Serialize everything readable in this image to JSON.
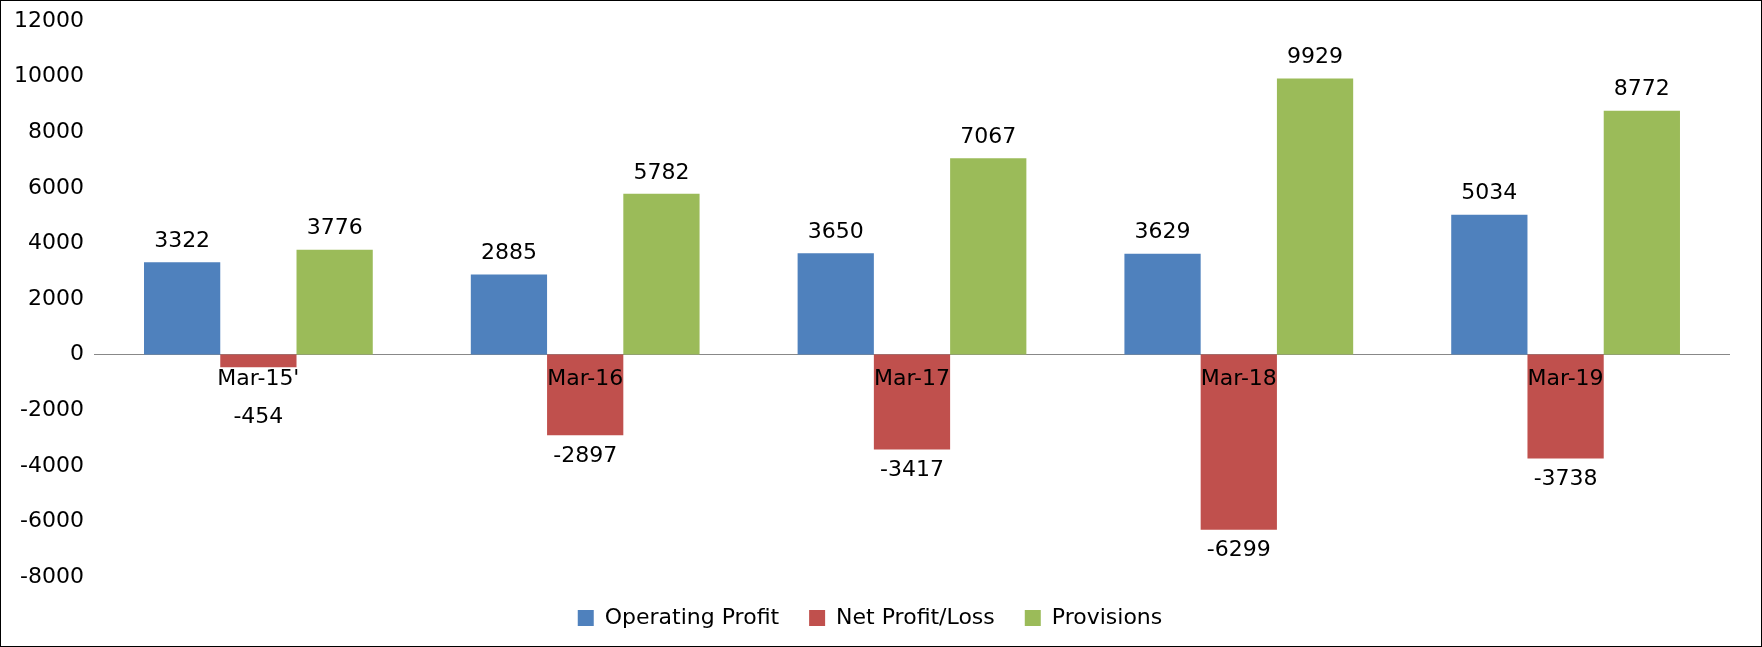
{
  "chart_data": {
    "type": "bar",
    "categories": [
      "Mar-15'",
      "Mar-16",
      "Mar-17",
      "Mar-18",
      "Mar-19"
    ],
    "series": [
      {
        "name": "Operating Profit",
        "color": "#4f81bd",
        "values": [
          3322,
          2885,
          3650,
          3629,
          5034
        ]
      },
      {
        "name": "Net Profit/Loss",
        "color": "#c0504d",
        "values": [
          -454,
          -2897,
          -3417,
          -6299,
          -3738
        ]
      },
      {
        "name": "Provisions",
        "color": "#9bbb59",
        "values": [
          3776,
          5782,
          7067,
          9929,
          8772
        ]
      }
    ],
    "ylim": [
      -8000,
      12000
    ],
    "yticks": [
      -8000,
      -6000,
      -4000,
      -2000,
      0,
      2000,
      4000,
      6000,
      8000,
      10000,
      12000
    ],
    "grid": false,
    "legend": "bottom",
    "data_labels": true
  }
}
